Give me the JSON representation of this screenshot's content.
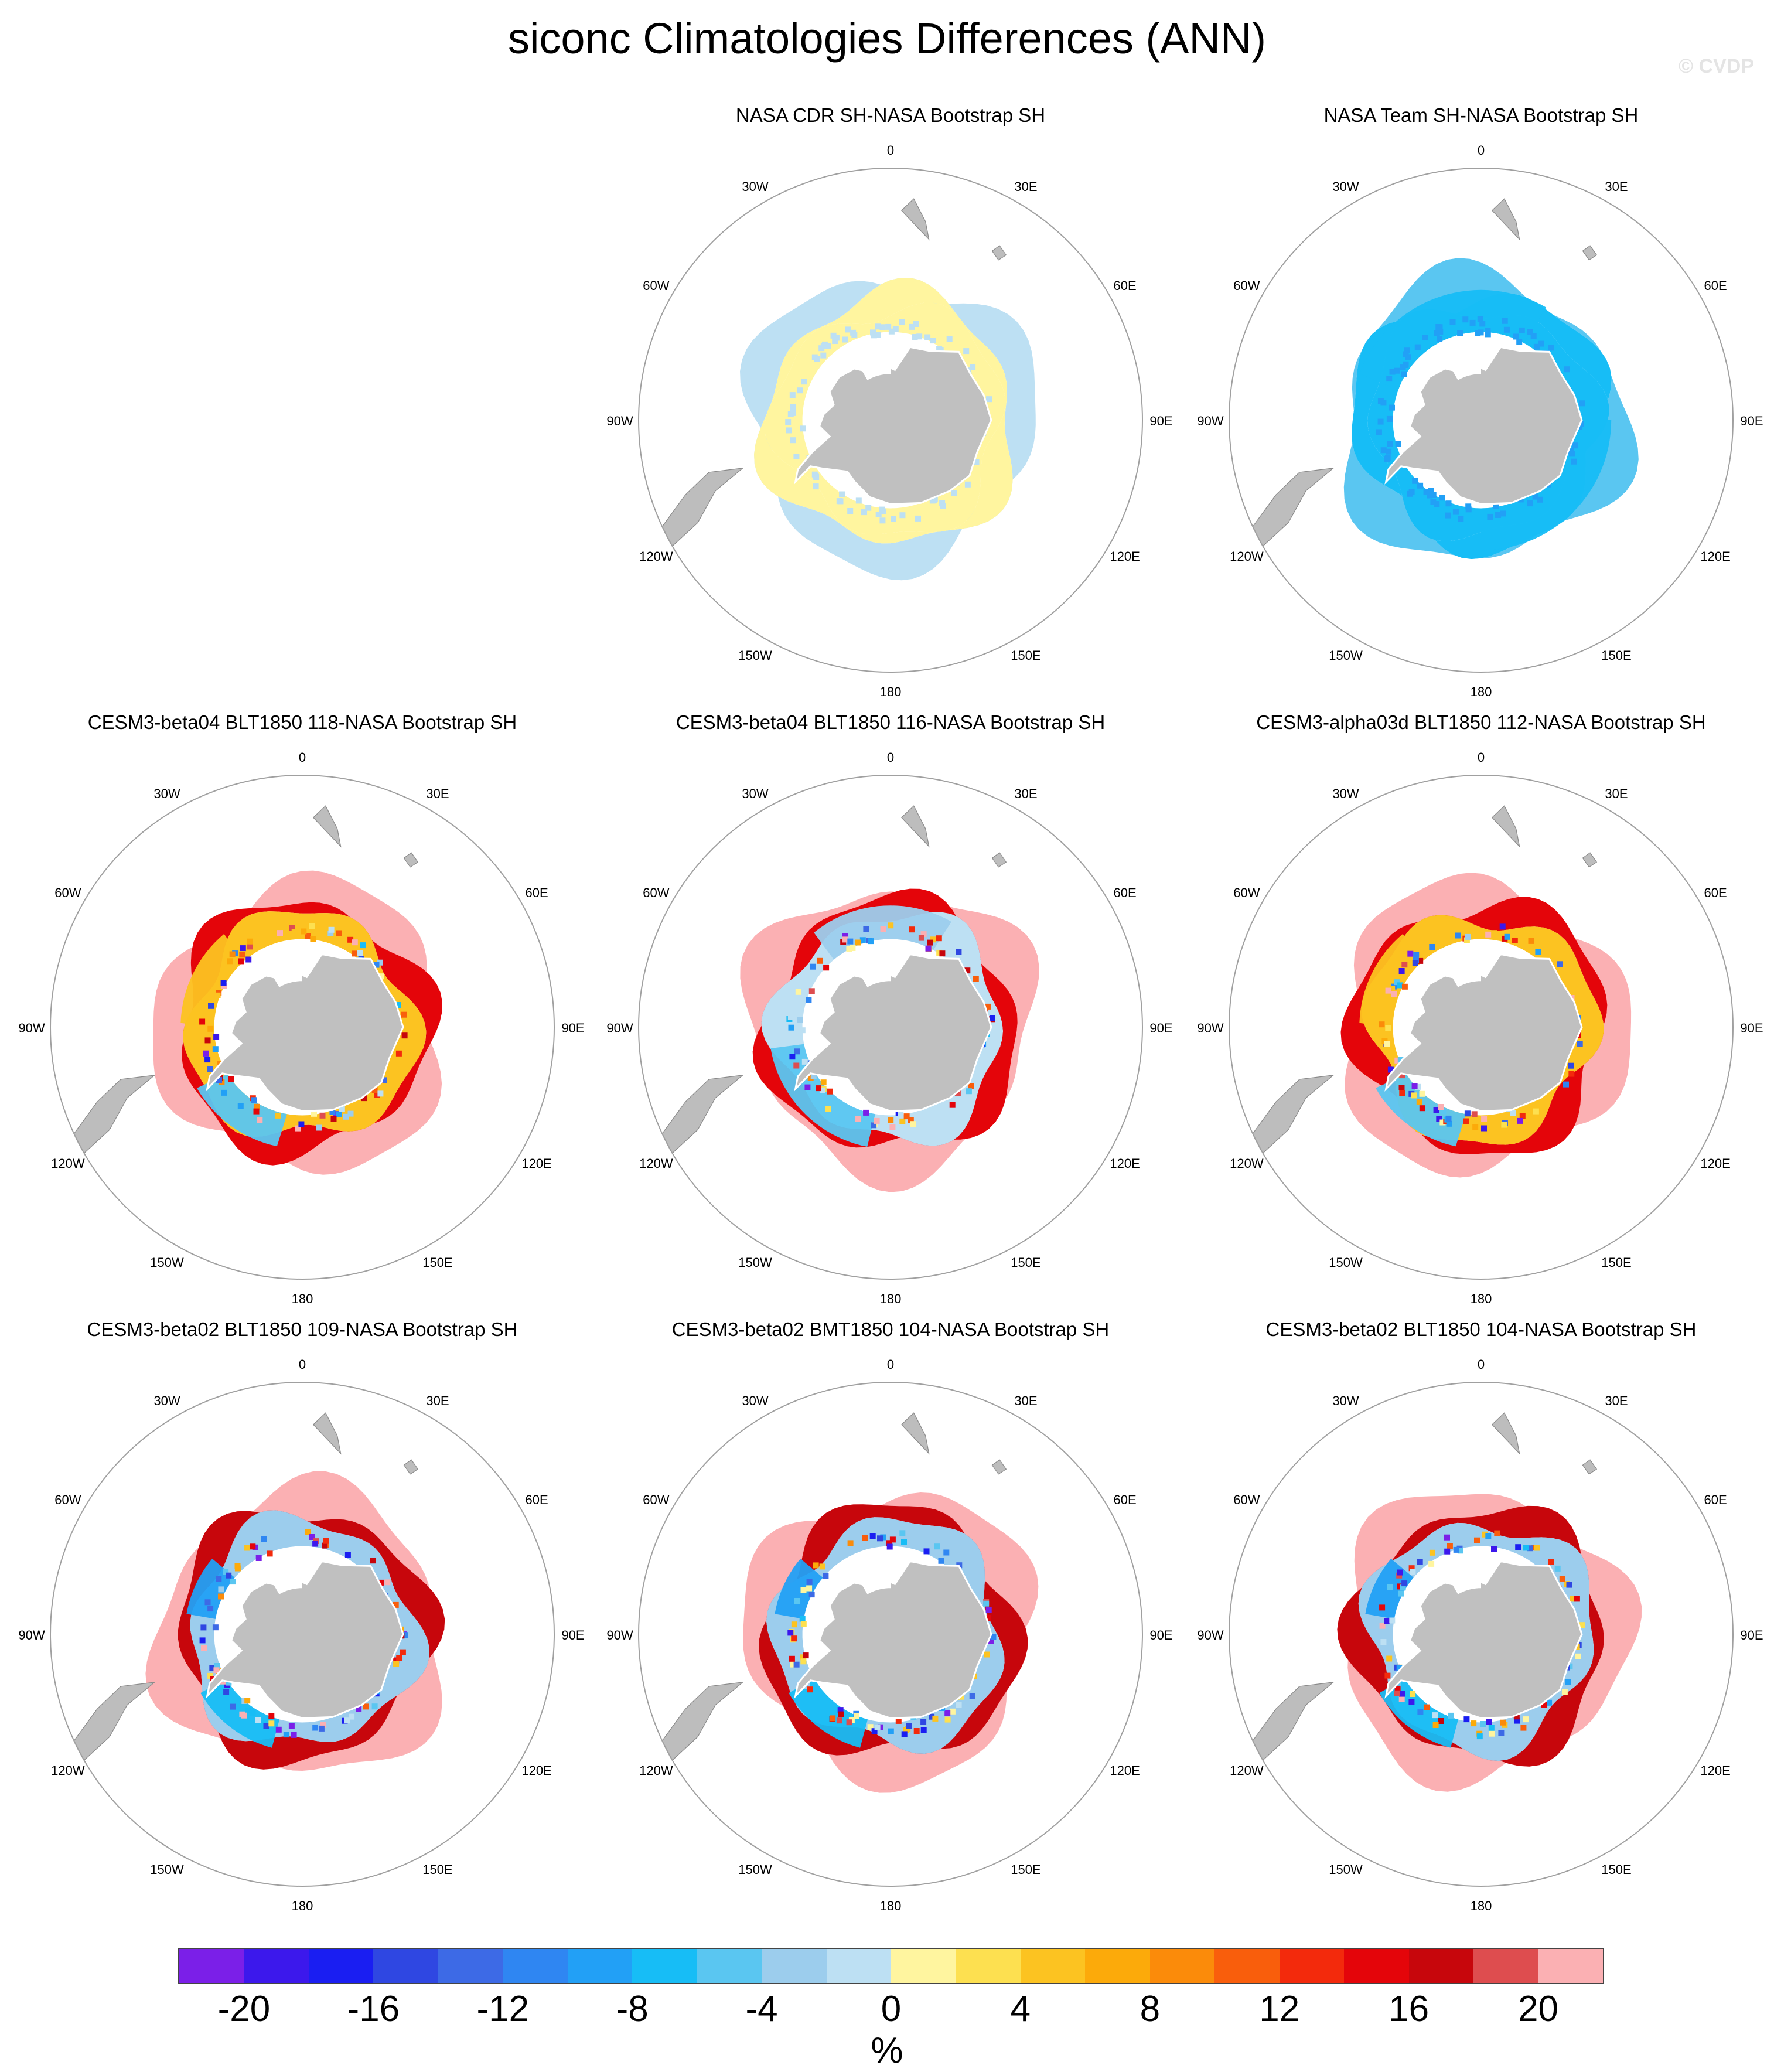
{
  "title": "siconc Climatologies Differences (ANN)",
  "watermark": "© CVDP",
  "unit": "%",
  "colors": {
    "land": "#bdbdbd",
    "coast_outline": "#8a8a8a",
    "antarctica": "#c0c0c0",
    "ice_shelf": "#ffffff",
    "frame": "#a0a0a0"
  },
  "colorbar": {
    "colors": [
      "#7b1fe8",
      "#3c18ec",
      "#1a1ef2",
      "#2f47e2",
      "#3d6ae6",
      "#2f86f2",
      "#22a0f6",
      "#17bdf6",
      "#5ac6f1",
      "#9ccded",
      "#bde0f3",
      "#fff59f",
      "#fde050",
      "#fcc321",
      "#fcaa0a",
      "#fb8b0a",
      "#f95e0c",
      "#f32a0c",
      "#e4050a",
      "#c7060c",
      "#de4d4f",
      "#fbb0b3"
    ],
    "tick_labels": [
      "-20",
      "-16",
      "-12",
      "-8",
      "-4",
      "0",
      "4",
      "8",
      "12",
      "16",
      "20"
    ],
    "tick_boundaries": [
      1,
      3,
      5,
      7,
      9,
      11,
      13,
      15,
      17,
      19,
      21
    ]
  },
  "meridian_labels": [
    "0",
    "30E",
    "60E",
    "90E",
    "120E",
    "150E",
    "180",
    "150W",
    "120W",
    "90W",
    "60W",
    "30W"
  ],
  "panels": [
    {
      "title": "NASA CDR SH-NASA Bootstrap SH",
      "regime": "small"
    },
    {
      "title": "NASA Team SH-NASA Bootstrap SH",
      "regime": "team"
    },
    {
      "title": "CESM3-beta04 BLT1850 118-NASA Bootstrap SH",
      "regime": "warm"
    },
    {
      "title": "CESM3-beta04 BLT1850 116-NASA Bootstrap SH",
      "regime": "mixed"
    },
    {
      "title": "CESM3-alpha03d BLT1850 112-NASA Bootstrap SH",
      "regime": "warm"
    },
    {
      "title": "CESM3-beta02 BLT1850 109-NASA Bootstrap SH",
      "regime": "cool"
    },
    {
      "title": "CESM3-beta02 BMT1850 104-NASA Bootstrap SH",
      "regime": "cool"
    },
    {
      "title": "CESM3-beta02 BLT1850 104-NASA Bootstrap SH",
      "regime": "cool"
    }
  ]
}
